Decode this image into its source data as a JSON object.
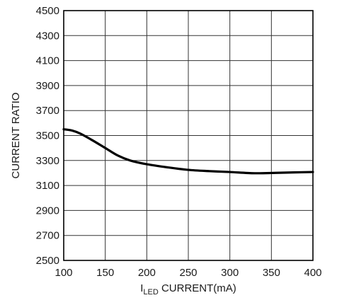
{
  "chart_data": {
    "type": "line",
    "title": "",
    "xlabel_prefix": "I",
    "xlabel_subscript": "LED",
    "xlabel_suffix": " CURRENT(mA)",
    "ylabel": "CURRENT RATIO",
    "xlim": [
      100,
      400
    ],
    "ylim": [
      2500,
      4500
    ],
    "x_ticks": [
      100,
      150,
      200,
      250,
      300,
      350,
      400
    ],
    "y_ticks": [
      2500,
      2700,
      2900,
      3100,
      3300,
      3500,
      3700,
      3900,
      4100,
      4300,
      4500
    ],
    "grid": true,
    "series": [
      {
        "x": [
          100,
          110,
          120,
          135,
          150,
          165,
          180,
          200,
          225,
          250,
          275,
          300,
          330,
          360,
          400
        ],
        "y": [
          3550,
          3540,
          3515,
          3460,
          3400,
          3340,
          3300,
          3270,
          3245,
          3225,
          3215,
          3208,
          3198,
          3202,
          3208
        ]
      }
    ],
    "colors": {
      "line": "#000000",
      "grid": "#333333",
      "axis": "#000000"
    }
  }
}
